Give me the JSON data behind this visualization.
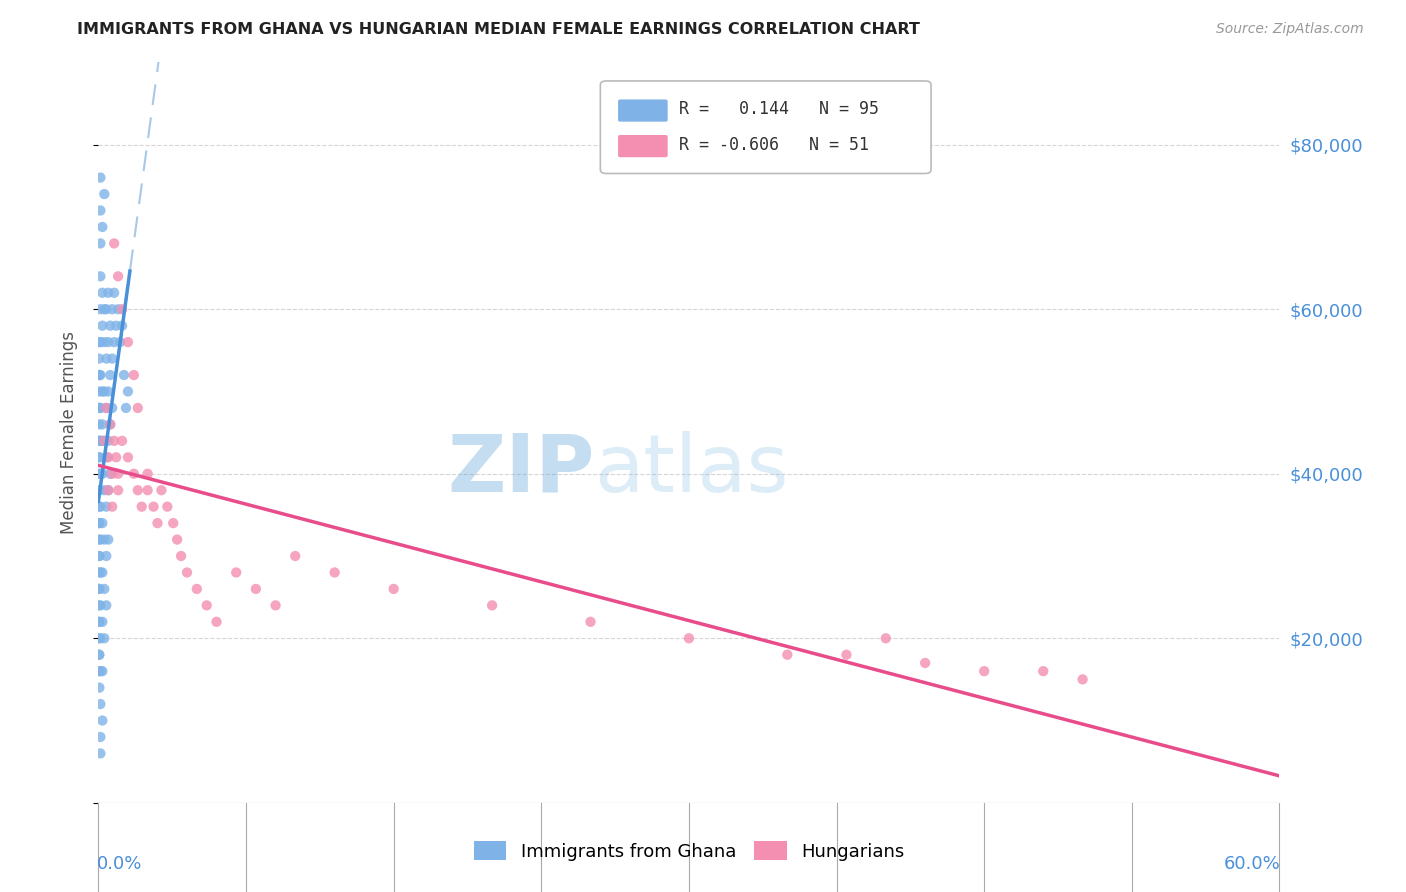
{
  "title": "IMMIGRANTS FROM GHANA VS HUNGARIAN MEDIAN FEMALE EARNINGS CORRELATION CHART",
  "source": "Source: ZipAtlas.com",
  "ylabel": "Median Female Earnings",
  "xlim": [
    0.0,
    0.6
  ],
  "ylim": [
    0,
    90000
  ],
  "ghana_color": "#7fb3e8",
  "hungarian_color": "#f48fb1",
  "ghana_R": 0.144,
  "ghana_N": 95,
  "hungarian_R": -0.606,
  "hungarian_N": 51,
  "ghana_line_color": "#4a90d9",
  "hungarian_line_color": "#e84c8b",
  "dashed_line_color": "#a8c8e8",
  "watermark_color": "#d0e8f5",
  "background_color": "#ffffff",
  "grid_color": "#cccccc",
  "axis_color": "#4a90d9",
  "ytick_vals": [
    20000,
    40000,
    60000,
    80000
  ],
  "ytick_labels": [
    "$20,000",
    "$40,000",
    "$60,000",
    "$80,000"
  ]
}
